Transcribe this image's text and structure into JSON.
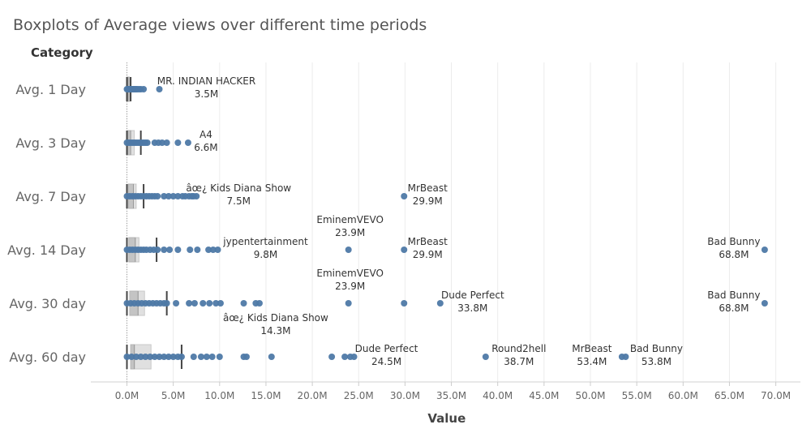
{
  "chart_data": {
    "type": "boxplot",
    "title": "Boxplots of Average views over different time periods",
    "row_header": "Category",
    "xlabel": "Value",
    "xlim": [
      -3.5,
      72.5
    ],
    "x_ticks": [
      0,
      5,
      10,
      15,
      20,
      25,
      30,
      35,
      40,
      45,
      50,
      55,
      60,
      65,
      70
    ],
    "x_tick_labels": [
      "0.0M",
      "5.0M",
      "10.0M",
      "15.0M",
      "20.0M",
      "25.0M",
      "30.0M",
      "35.0M",
      "40.0M",
      "45.0M",
      "50.0M",
      "55.0M",
      "60.0M",
      "65.0M",
      "70.0M"
    ],
    "grid": true,
    "point_color": "#4e79a7",
    "categories": [
      "Avg. 1 Day",
      "Avg. 3 Day",
      "Avg. 7 Day",
      "Avg. 14 Day",
      "Avg. 30 day",
      "Avg. 60 day"
    ],
    "boxes": [
      {
        "category": "Avg. 1 Day",
        "whisker_low": 0,
        "q1": 0.05,
        "median": 0.1,
        "q3": 0.25,
        "whisker_high": 0.4
      },
      {
        "category": "Avg. 3 Day",
        "whisker_low": 0,
        "q1": 0.1,
        "median": 0.4,
        "q3": 0.8,
        "whisker_high": 1.5
      },
      {
        "category": "Avg. 7 Day",
        "whisker_low": 0,
        "q1": 0.15,
        "median": 0.7,
        "q3": 1.0,
        "whisker_high": 1.8
      },
      {
        "category": "Avg. 14 Day",
        "whisker_low": 0,
        "q1": 0.2,
        "median": 0.9,
        "q3": 1.3,
        "whisker_high": 3.2
      },
      {
        "category": "Avg. 30 day",
        "whisker_low": 0,
        "q1": 0.3,
        "median": 1.2,
        "q3": 1.9,
        "whisker_high": 4.3
      },
      {
        "category": "Avg. 60 day",
        "whisker_low": 0,
        "q1": 0.4,
        "median": 0.8,
        "q3": 2.6,
        "whisker_high": 5.9
      }
    ],
    "points": [
      [
        0.0,
        0.1,
        0.2,
        0.3,
        0.4,
        0.5,
        0.6,
        0.7,
        0.8,
        0.9,
        1.0,
        1.1,
        1.3,
        1.5,
        1.8,
        3.5
      ],
      [
        0.0,
        0.2,
        0.4,
        0.6,
        0.8,
        1.0,
        1.2,
        1.4,
        1.6,
        1.8,
        2.0,
        2.2,
        3.0,
        3.4,
        3.8,
        4.3,
        5.5,
        6.6
      ],
      [
        0.0,
        0.3,
        0.6,
        0.9,
        1.2,
        1.5,
        1.8,
        2.1,
        2.4,
        2.7,
        3.0,
        3.3,
        4.0,
        4.5,
        5.0,
        5.5,
        6.0,
        6.3,
        6.7,
        7.0,
        7.2,
        7.5,
        29.9
      ],
      [
        0.0,
        0.3,
        0.6,
        0.9,
        1.2,
        1.5,
        1.8,
        2.1,
        2.5,
        2.9,
        3.3,
        4.0,
        4.6,
        5.5,
        6.8,
        7.6,
        8.8,
        9.3,
        9.8,
        23.9,
        29.9,
        68.8
      ],
      [
        0.0,
        0.4,
        0.8,
        1.2,
        1.6,
        2.0,
        2.4,
        2.8,
        3.2,
        3.6,
        4.0,
        4.3,
        5.3,
        6.7,
        7.3,
        8.2,
        8.9,
        9.6,
        10.1,
        12.6,
        13.9,
        14.3,
        23.9,
        29.9,
        33.8,
        68.8
      ],
      [
        0.0,
        0.5,
        1.0,
        1.5,
        2.0,
        2.5,
        3.0,
        3.5,
        4.0,
        4.5,
        5.0,
        5.5,
        5.9,
        7.2,
        8.0,
        8.6,
        9.2,
        10.0,
        12.6,
        12.9,
        15.6,
        22.1,
        23.5,
        24.1,
        24.5,
        38.7,
        53.4,
        53.8
      ]
    ],
    "annotations": [
      {
        "row": 0,
        "x": 3.5,
        "name": "MR. INDIAN HACKER",
        "value": "3.5M"
      },
      {
        "row": 1,
        "x": 6.6,
        "name": "A4",
        "value": "6.6M"
      },
      {
        "row": 2,
        "x": 7.5,
        "name": "âœ¿ Kids Diana Show",
        "value": "7.5M"
      },
      {
        "row": 2,
        "x": 29.9,
        "name": "MrBeast",
        "value": "29.9M"
      },
      {
        "row": 3,
        "x": 9.8,
        "name": "jypentertainment",
        "value": "9.8M"
      },
      {
        "row": 3,
        "x": 23.9,
        "name": "EminemVEVO",
        "value": "23.9M"
      },
      {
        "row": 3,
        "x": 29.9,
        "name": "MrBeast",
        "value": "29.9M"
      },
      {
        "row": 3,
        "x": 68.8,
        "name": "Bad Bunny",
        "value": "68.8M"
      },
      {
        "row": 4,
        "x": 23.9,
        "name": "EminemVEVO",
        "value": "23.9M"
      },
      {
        "row": 4,
        "x": 33.8,
        "name": "Dude Perfect",
        "value": "33.8M"
      },
      {
        "row": 4,
        "x": 68.8,
        "name": "Bad Bunny",
        "value": "68.8M"
      },
      {
        "row": 4,
        "x": 14.3,
        "name": "âœ¿ Kids Diana Show",
        "value": "14.3M"
      },
      {
        "row": 5,
        "x": 24.5,
        "name": "Dude Perfect",
        "value": "24.5M"
      },
      {
        "row": 5,
        "x": 38.7,
        "name": "Round2hell",
        "value": "38.7M"
      },
      {
        "row": 5,
        "x": 53.4,
        "name": "MrBeast",
        "value": "53.4M"
      },
      {
        "row": 5,
        "x": 53.8,
        "name": "Bad Bunny",
        "value": "53.8M"
      }
    ]
  }
}
